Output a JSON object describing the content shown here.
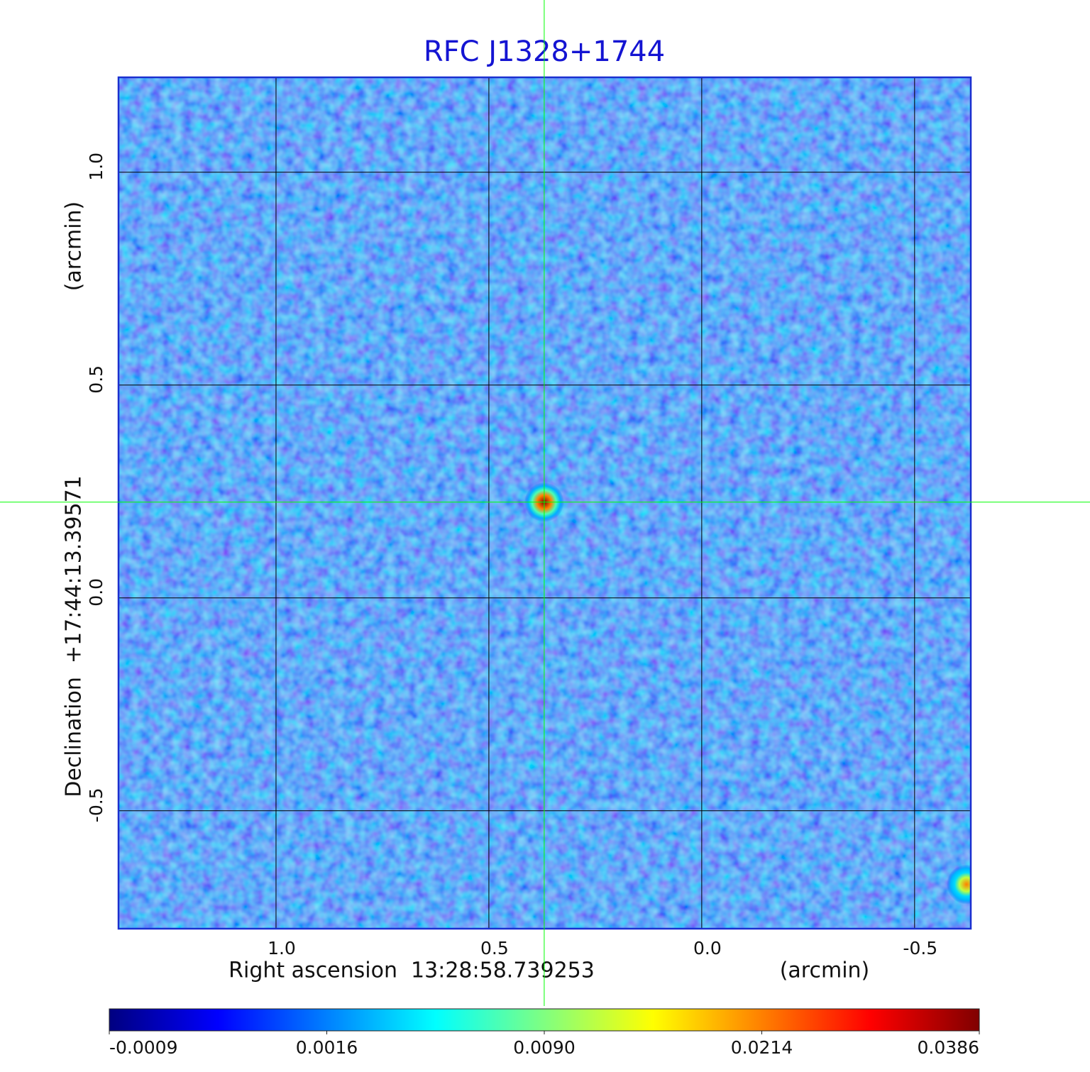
{
  "chart_data": {
    "type": "image",
    "title": "RFC J1328+1744",
    "x_label": "Right ascension  13:28:58.739253",
    "x_unit": "(arcmin)",
    "y_label": "Declination  +17:44:13.39571",
    "y_unit": "(arcmin)",
    "xlim": [
      1.37,
      -0.632
    ],
    "ylim": [
      -0.777,
      1.223
    ],
    "xticks": [
      {
        "value": 1,
        "label": "1.0"
      },
      0.5,
      {
        "value": 0,
        "label": "0.0"
      },
      -0.5
    ],
    "yticks": [
      -0.5,
      {
        "value": 0,
        "label": "0.0"
      },
      0.5,
      {
        "value": 1,
        "label": "1.0"
      }
    ],
    "grid": true,
    "sources": [
      {
        "x": 0.37,
        "y": 0.225,
        "peak": 0.0386
      },
      {
        "x": -0.622,
        "y": -0.673,
        "peak": 0.0214
      }
    ],
    "crosshair": {
      "x": 0.37,
      "y": 0.225,
      "color": "#00ff00"
    },
    "colormap": [
      "#000080",
      "#0000ff",
      "#0080ff",
      "#00ffff",
      "#80ff80",
      "#ffff00",
      "#ff8000",
      "#ff0000",
      "#800000"
    ],
    "colorbar_ticks": [
      -0.0009,
      0.0016,
      {
        "value": 0.009,
        "label": "0.0090"
      },
      0.0214,
      0.0386
    ]
  }
}
